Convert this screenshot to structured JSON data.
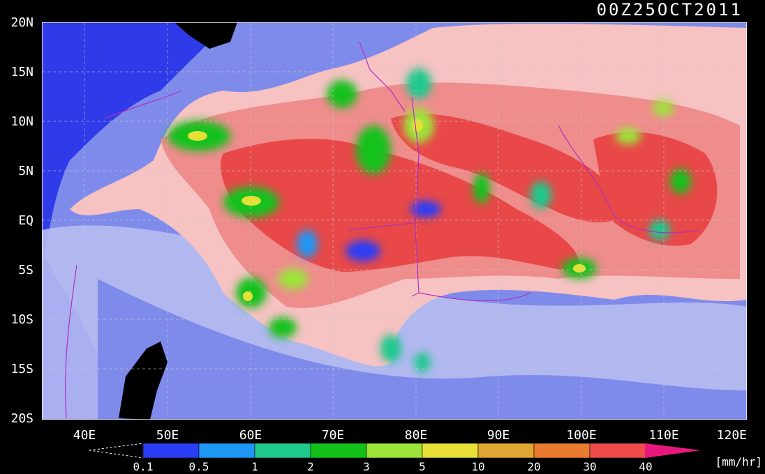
{
  "timestamp": "00Z25OCT2011",
  "lat_labels": [
    "20N",
    "15N",
    "10N",
    "5N",
    "EQ",
    "5S",
    "10S",
    "15S",
    "20S"
  ],
  "lon_labels": [
    "40E",
    "50E",
    "60E",
    "70E",
    "80E",
    "90E",
    "100E",
    "110E",
    "120E"
  ],
  "colorbar": {
    "ticks": [
      "0.1",
      "0.5",
      "1",
      "2",
      "3",
      "5",
      "10",
      "20",
      "30",
      "40"
    ],
    "unit": "[mm/hr]",
    "colors": [
      "#2b3cf5",
      "#1f97f5",
      "#1fc98c",
      "#12c11a",
      "#9ee33a",
      "#e6e036",
      "#e0a733",
      "#e87b2f",
      "#ef4b4b",
      "#e8177e"
    ]
  },
  "palette": {
    "ocean_dark": "#2f3ae8",
    "ocean_mid": "#7f8bea",
    "ocean_light": "#b7bdf1",
    "land": "#000000",
    "low_rain": "#f6c2c2",
    "mid_rain": "#ef8c8c",
    "high_rain": "#e84848",
    "border": "#b030c0"
  }
}
